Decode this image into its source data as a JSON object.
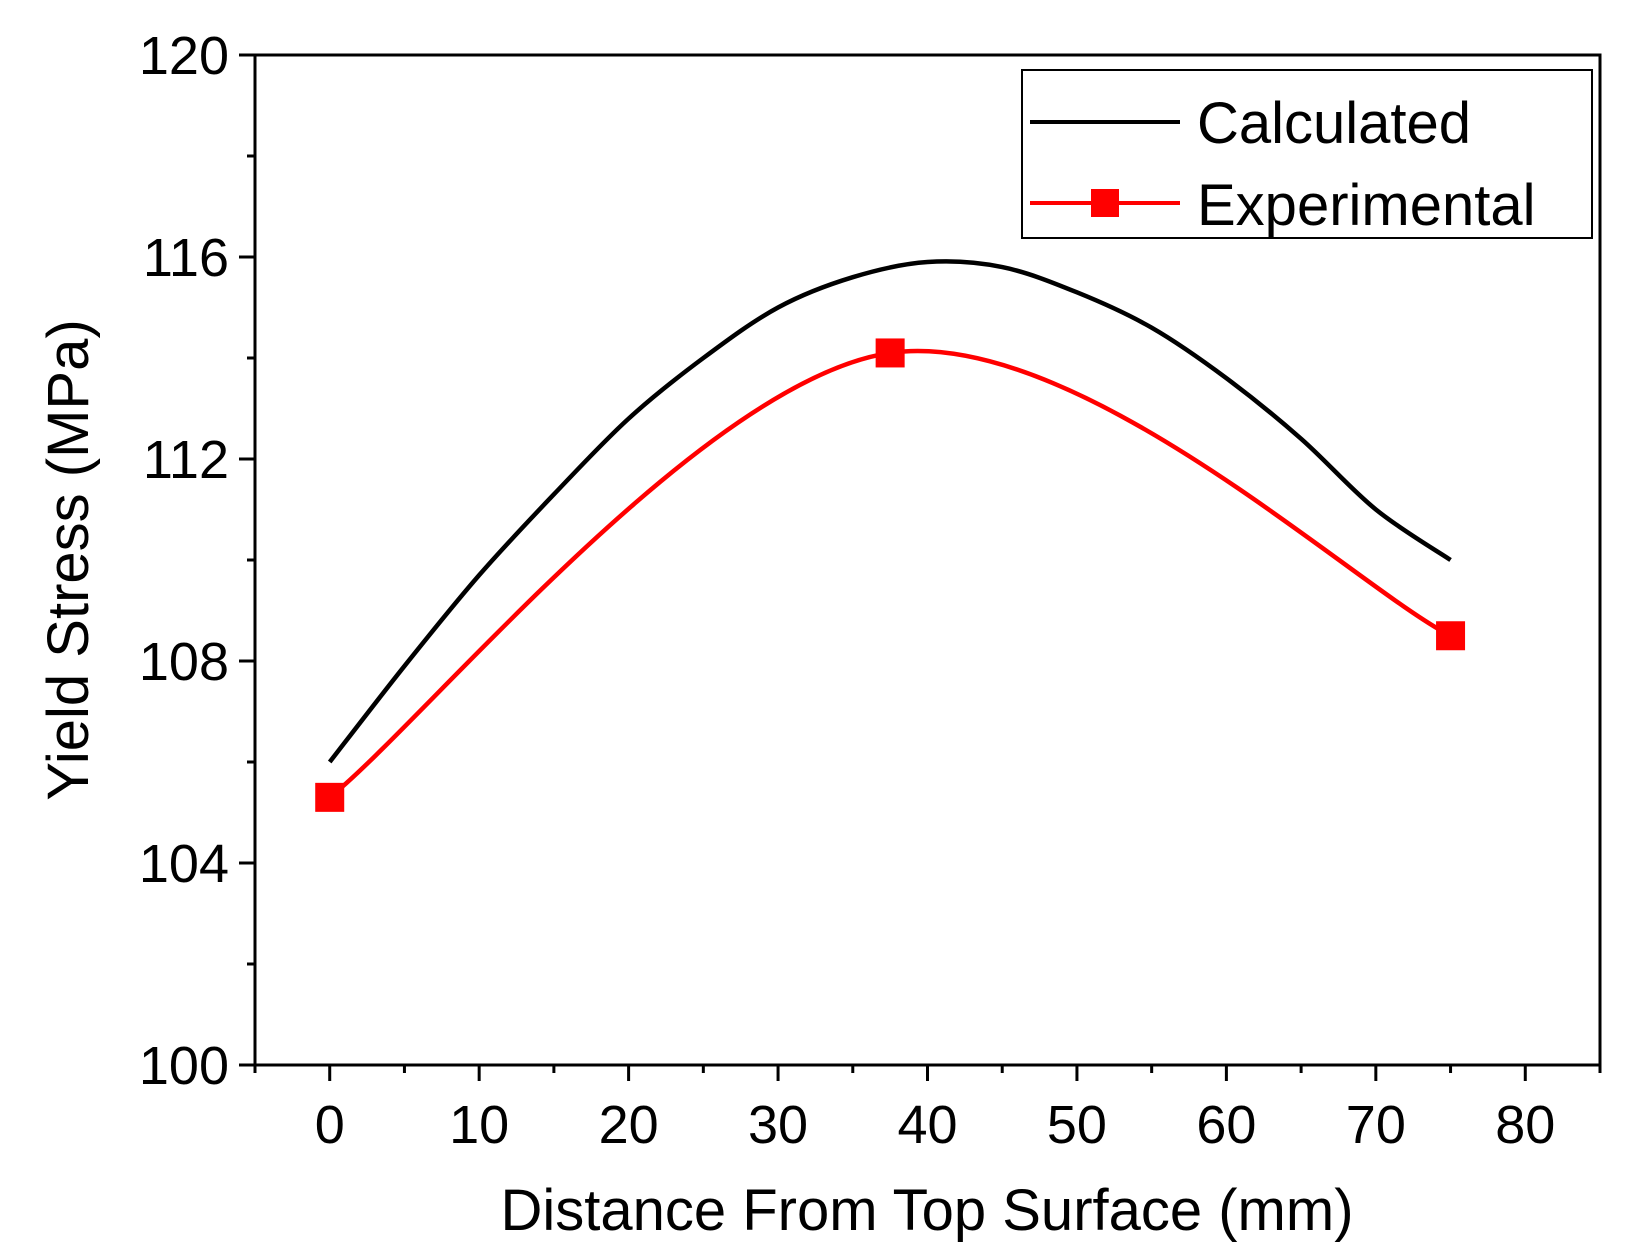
{
  "chart_data": {
    "type": "line",
    "title": "",
    "xlabel": "Distance From Top Surface (mm)",
    "ylabel": "Yield Stress (MPa)",
    "xlim": [
      -5,
      85
    ],
    "ylim": [
      100,
      120
    ],
    "xticks": [
      0,
      10,
      20,
      30,
      40,
      50,
      60,
      70,
      80
    ],
    "yticks": [
      100,
      104,
      108,
      112,
      116,
      120
    ],
    "grid": false,
    "legend_position": "top-right",
    "series": [
      {
        "name": "Calculated",
        "color": "#000000",
        "marker": "none",
        "x": [
          0,
          5,
          10,
          15,
          20,
          25,
          30,
          35,
          40,
          45,
          50,
          55,
          60,
          65,
          70,
          75
        ],
        "y": [
          106.0,
          107.9,
          109.7,
          111.3,
          112.8,
          114.0,
          115.0,
          115.6,
          115.9,
          115.8,
          115.3,
          114.6,
          113.6,
          112.4,
          111.0,
          110.0
        ]
      },
      {
        "name": "Experimental",
        "color": "#ff0000",
        "marker": "square",
        "x": [
          0,
          37.5,
          75
        ],
        "y": [
          105.3,
          114.1,
          108.5
        ]
      }
    ]
  }
}
